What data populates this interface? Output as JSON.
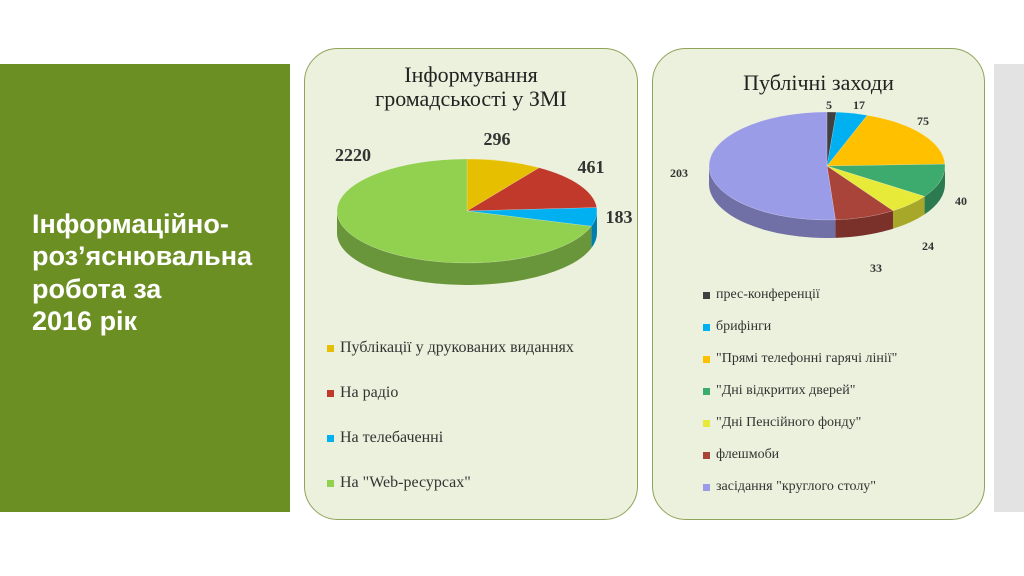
{
  "slide": {
    "title": "Інформаційно-\nроз’яснювальна\nробота за\n2016 рік"
  },
  "chart_data": [
    {
      "type": "pie",
      "title_lines": [
        "Інформування",
        "громадськості у ЗМІ"
      ],
      "slices": [
        {
          "label": "Публікації у друкованих виданнях",
          "value": 296,
          "color": "#e6c000"
        },
        {
          "label": "На радіо",
          "value": 461,
          "color": "#c0392b"
        },
        {
          "label": "На телебаченні",
          "value": 183,
          "color": "#00b0f0"
        },
        {
          "label": "На \"Web-ресурсах\"",
          "value": 2220,
          "color": "#92d050"
        }
      ],
      "legend_position": "bottom"
    },
    {
      "type": "pie",
      "title_lines": [
        "Публічні заходи"
      ],
      "slices": [
        {
          "label": "прес-конференції",
          "value": 5,
          "color": "#404040"
        },
        {
          "label": "брифінги",
          "value": 17,
          "color": "#00b0f0"
        },
        {
          "label": "\"Прямі телефонні гарячі лінії\"",
          "value": 75,
          "color": "#ffc000"
        },
        {
          "label": "\"Дні відкритих дверей\"",
          "value": 40,
          "color": "#3daa6e"
        },
        {
          "label": "\"Дні Пенсійного фонду\"",
          "value": 24,
          "color": "#e8ea3a"
        },
        {
          "label": "флешмоби",
          "value": 33,
          "color": "#a9443a"
        },
        {
          "label": "засідання \"круглого столу\"",
          "value": 203,
          "color": "#9b9ce8"
        }
      ],
      "legend_position": "bottom"
    }
  ]
}
